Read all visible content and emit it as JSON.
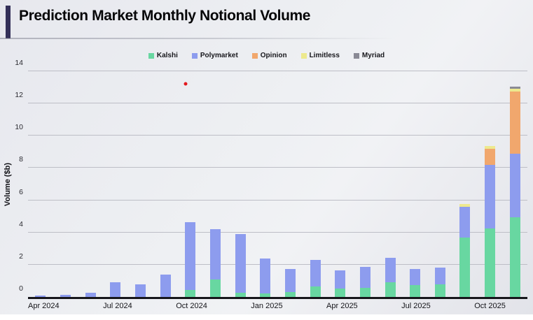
{
  "header": {
    "title": "Prediction Market Monthly Notional Volume"
  },
  "chart_data": {
    "type": "bar",
    "stacked": true,
    "title": "Prediction Market Monthly Notional Volume",
    "xlabel": "",
    "ylabel": "Volume ($b)",
    "ylim": [
      0,
      14
    ],
    "yticks": [
      0,
      2,
      4,
      6,
      8,
      10,
      12,
      14
    ],
    "grid": true,
    "legend_position": "top",
    "categories": [
      "Apr 2024",
      "May 2024",
      "Jun 2024",
      "Jul 2024",
      "Aug 2024",
      "Sep 2024",
      "Oct 2024",
      "Nov 2024",
      "Dec 2024",
      "Jan 2025",
      "Feb 2025",
      "Mar 2025",
      "Apr 2025",
      "May 2025",
      "Jun 2025",
      "Jul 2025",
      "Aug 2025",
      "Sep 2025",
      "Oct 2025",
      "Nov 2025"
    ],
    "x_tick_labels": [
      "Apr 2024",
      "Jul 2024",
      "Oct 2024",
      "Jan 2025",
      "Apr 2025",
      "Jul 2025",
      "Oct 2025"
    ],
    "series": [
      {
        "name": "Kalshi",
        "color": "#68d7a1",
        "values": [
          0,
          0,
          0,
          0,
          0,
          0,
          0.45,
          1.1,
          0.25,
          0.2,
          0.3,
          0.65,
          0.5,
          0.55,
          0.9,
          0.75,
          0.8,
          3.7,
          4.25,
          4.95
        ]
      },
      {
        "name": "Polymarket",
        "color": "#8d9cee",
        "values": [
          0.08,
          0.15,
          0.25,
          0.9,
          0.8,
          1.4,
          4.2,
          3.1,
          3.65,
          2.2,
          1.45,
          1.65,
          1.15,
          1.3,
          1.55,
          1.0,
          1.0,
          1.9,
          3.95,
          3.95
        ]
      },
      {
        "name": "Opinion",
        "color": "#f1a76d",
        "values": [
          0,
          0,
          0,
          0,
          0,
          0,
          0,
          0,
          0,
          0,
          0,
          0,
          0,
          0,
          0,
          0,
          0,
          0,
          1.0,
          3.85
        ]
      },
      {
        "name": "Limitless",
        "color": "#ede98e",
        "values": [
          0,
          0,
          0,
          0,
          0,
          0,
          0,
          0,
          0,
          0,
          0,
          0,
          0,
          0,
          0,
          0,
          0,
          0.15,
          0.15,
          0.15
        ]
      },
      {
        "name": "Myriad",
        "color": "#8a8a95",
        "values": [
          0,
          0,
          0,
          0,
          0,
          0,
          0,
          0,
          0,
          0,
          0,
          0,
          0,
          0,
          0,
          0,
          0,
          0,
          0,
          0.15
        ]
      }
    ],
    "annotations": [
      {
        "type": "point",
        "label": "red-dot",
        "color": "#e3191e",
        "month": "Oct 2024",
        "value": 13.2
      }
    ]
  },
  "colors": {
    "accent_bar": "#332f58",
    "background": "#eaebf0",
    "gridline": "#bdbec6",
    "axis": "#16161b"
  }
}
